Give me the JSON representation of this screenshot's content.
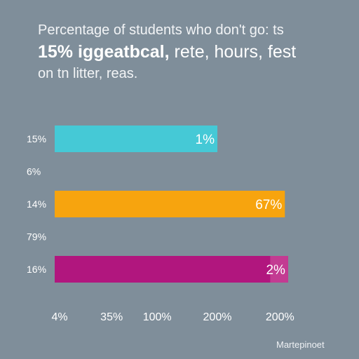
{
  "title": {
    "line1": "Percentage of students who don't go: ts",
    "line2_bold": "15% iggeatbcal,",
    "line2_rest": " rete, hours, fest",
    "line3": "on tn litter, reas."
  },
  "chart_data": {
    "type": "bar",
    "orientation": "horizontal",
    "title": "Percentage of students who don't go: ts 15% iggeatbcal, rete, hours, fest on tn litter, reas.",
    "row_labels": [
      "15%",
      "6%",
      "14%",
      "79%",
      "16%"
    ],
    "bars": [
      {
        "row": 0,
        "value": 200,
        "label": "1%",
        "color": "#45c9d6"
      },
      {
        "row": 2,
        "value": 283,
        "label": "67%",
        "color": "#f7a40e"
      },
      {
        "row": 4,
        "value": 287,
        "label": "2%",
        "color": "#b1167e",
        "overlay_color": "#c33b92",
        "overlay_from": 265
      }
    ],
    "x_ticks": [
      {
        "value": 0,
        "label": "4%"
      },
      {
        "value": 70,
        "label": "35%"
      },
      {
        "value": 126,
        "label": "100%"
      },
      {
        "value": 200,
        "label": "200%"
      },
      {
        "value": 277,
        "label": "200%"
      }
    ],
    "xlim": [
      0,
      300
    ],
    "grid": false,
    "legend": "none"
  },
  "footer": {
    "source": "Martepinoet"
  },
  "colors": {
    "background": "#7f8e9a",
    "text": "#ffffff"
  }
}
